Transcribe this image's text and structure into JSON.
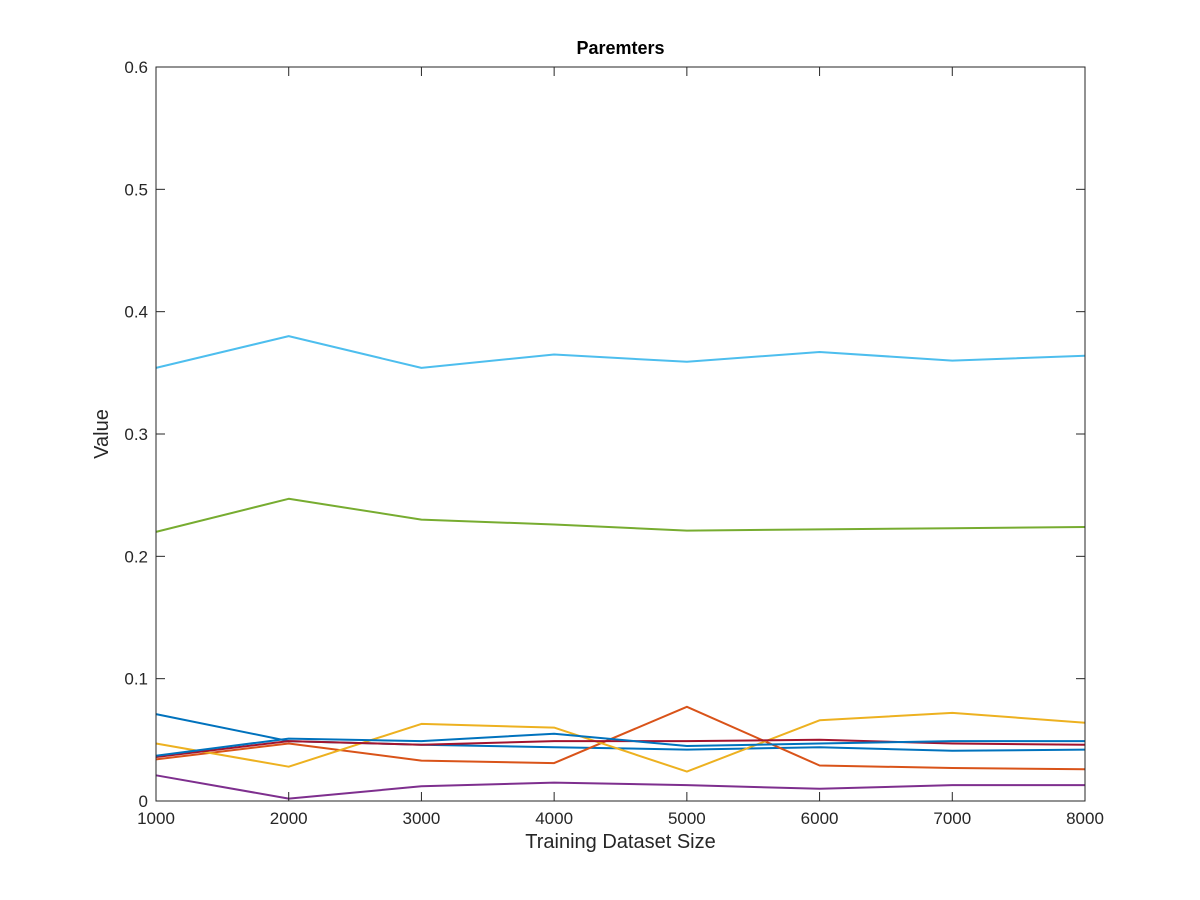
{
  "chart_data": {
    "type": "line",
    "title": "Paremters",
    "xlabel": "Training Dataset Size",
    "ylabel": "Value",
    "xlim": [
      1000,
      8000
    ],
    "ylim": [
      0,
      0.6
    ],
    "xticks": [
      1000,
      2000,
      3000,
      4000,
      5000,
      6000,
      7000,
      8000
    ],
    "xtick_labels": [
      "1000",
      "2000",
      "3000",
      "4000",
      "5000",
      "6000",
      "7000",
      "8000"
    ],
    "yticks": [
      0,
      0.1,
      0.2,
      0.3,
      0.4,
      0.5,
      0.6
    ],
    "ytick_labels": [
      "0",
      "0.1",
      "0.2",
      "0.3",
      "0.4",
      "0.5",
      "0.6"
    ],
    "grid": false,
    "x": [
      1000,
      2000,
      3000,
      4000,
      5000,
      6000,
      7000,
      8000
    ],
    "series": [
      {
        "color": "#0072BD",
        "values": [
          0.071,
          0.049,
          0.046,
          0.044,
          0.042,
          0.044,
          0.041,
          0.042
        ]
      },
      {
        "color": "#D95319",
        "values": [
          0.034,
          0.047,
          0.033,
          0.031,
          0.077,
          0.029,
          0.027,
          0.026
        ]
      },
      {
        "color": "#EDB120",
        "values": [
          0.047,
          0.028,
          0.063,
          0.06,
          0.024,
          0.066,
          0.072,
          0.064
        ]
      },
      {
        "color": "#7E2F8E",
        "values": [
          0.021,
          0.002,
          0.012,
          0.015,
          0.013,
          0.01,
          0.013,
          0.013
        ]
      },
      {
        "color": "#77AC30",
        "values": [
          0.22,
          0.247,
          0.23,
          0.226,
          0.221,
          0.222,
          0.223,
          0.224
        ]
      },
      {
        "color": "#4DBEEE",
        "values": [
          0.354,
          0.38,
          0.354,
          0.365,
          0.359,
          0.367,
          0.36,
          0.364
        ]
      },
      {
        "color": "#A2142F",
        "values": [
          0.036,
          0.049,
          0.046,
          0.049,
          0.049,
          0.05,
          0.047,
          0.046
        ]
      },
      {
        "color": "#0072BD",
        "values": [
          0.037,
          0.051,
          0.049,
          0.055,
          0.045,
          0.047,
          0.049,
          0.049
        ]
      }
    ]
  }
}
